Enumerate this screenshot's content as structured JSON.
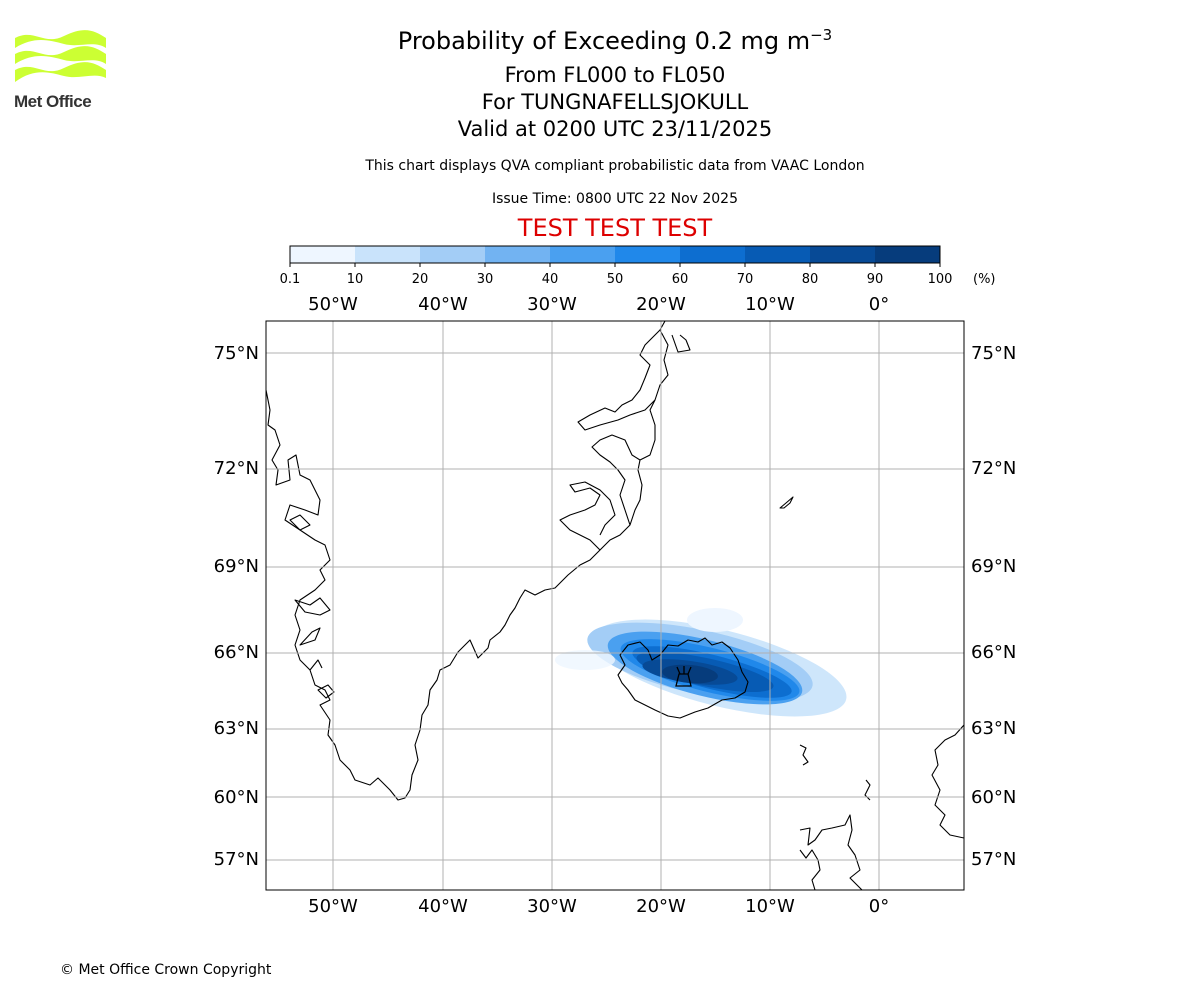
{
  "header": {
    "title_main": "Probability of Exceeding 0.2 mg m",
    "title_sup": "−3",
    "title_level": "From FL000 to FL050",
    "title_volcano": "For TUNGNAFELLSJOKULL",
    "title_valid": "Valid at 0200 UTC 23/11/2025",
    "note": "This chart displays QVA compliant probabilistic data from VAAC London",
    "issue_time": "Issue Time: 0800 UTC 22 Nov 2025",
    "test_banner": "TEST TEST TEST",
    "test_color": "#dd0000"
  },
  "logo": {
    "text": "Met Office",
    "wave_color": "#ccff33"
  },
  "colorbar": {
    "ticks": [
      "0.1",
      "10",
      "20",
      "30",
      "40",
      "50",
      "60",
      "70",
      "80",
      "90",
      "100"
    ],
    "unit": "(%)",
    "colors": [
      "#eef6ff",
      "#c9e3fb",
      "#a3cdf6",
      "#72b3f2",
      "#4aa0f0",
      "#2088ea",
      "#0d6ed0",
      "#075bb4",
      "#074a96",
      "#063c7c"
    ]
  },
  "map": {
    "lon_labels": [
      "50°W",
      "40°W",
      "30°W",
      "20°W",
      "10°W",
      "0°"
    ],
    "lat_labels": [
      "75°N",
      "72°N",
      "69°N",
      "66°N",
      "63°N",
      "60°N",
      "57°N"
    ],
    "volcano_marker": "volcano-icon"
  },
  "footer": {
    "copyright": "© Met Office Crown Copyright"
  }
}
